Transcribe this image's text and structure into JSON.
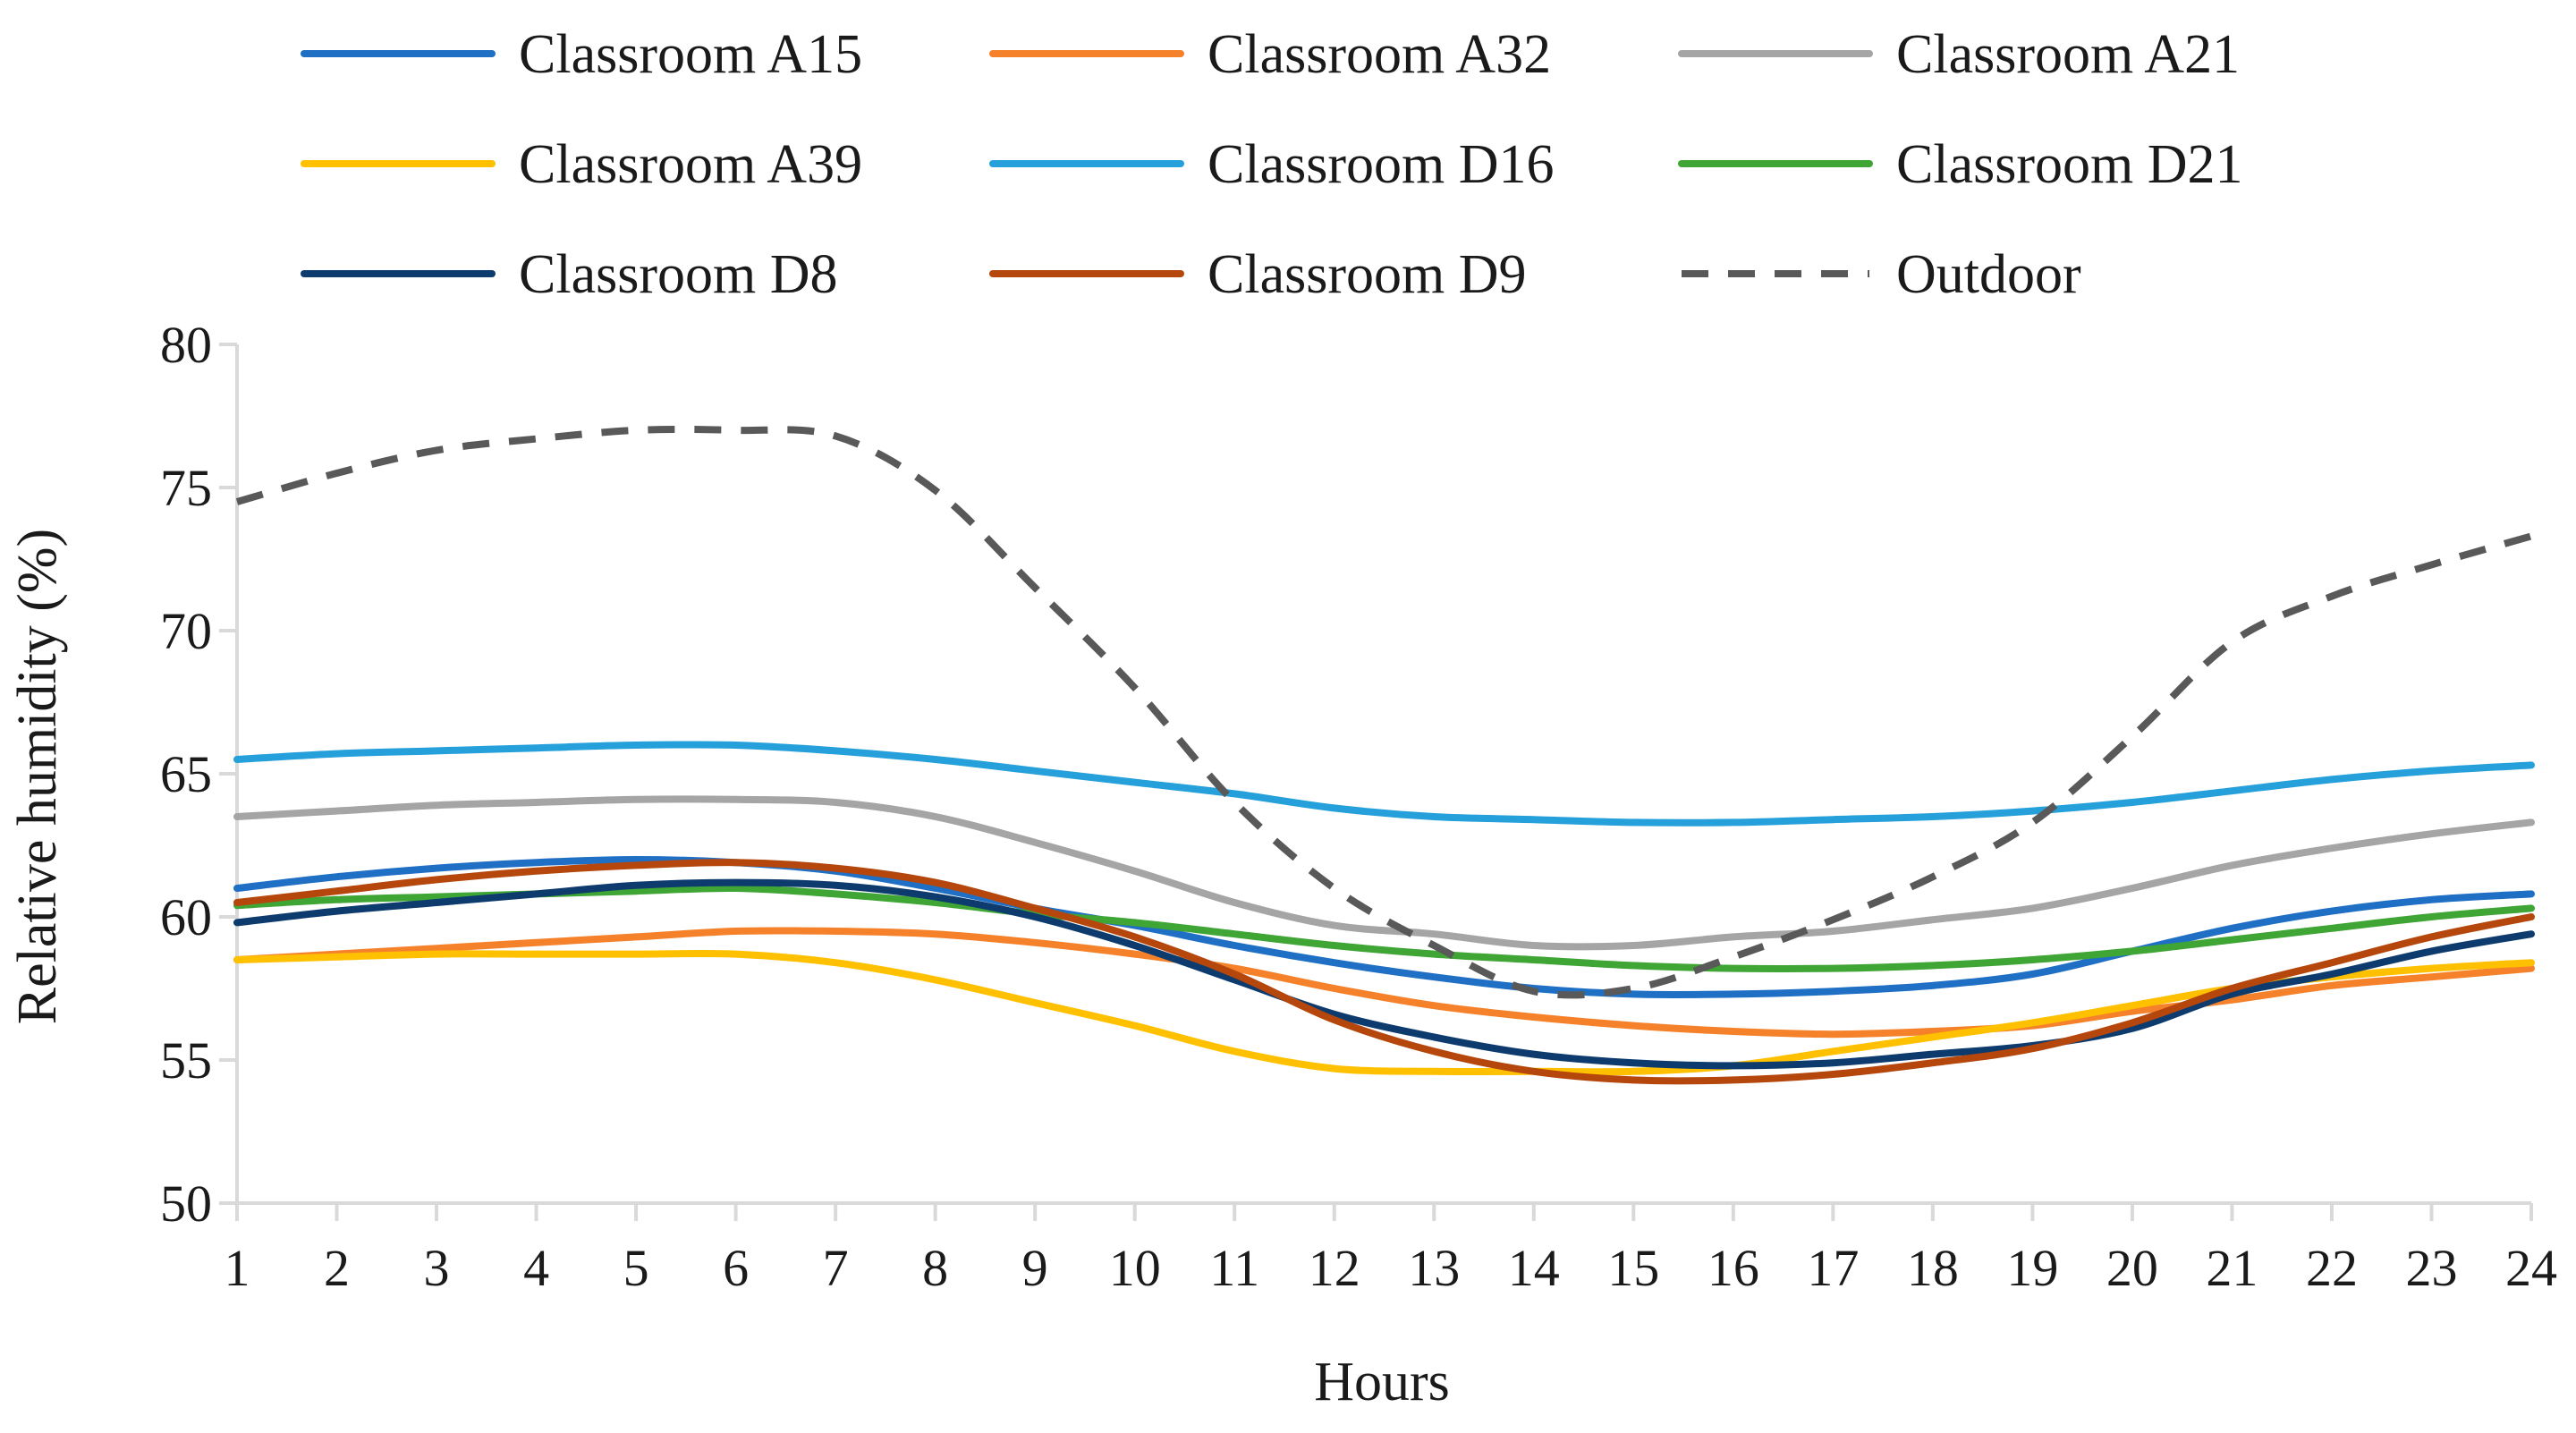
{
  "chart_data": {
    "type": "line",
    "xlabel": "Hours",
    "ylabel": "Relative humidity (%)",
    "ylim": [
      50,
      80
    ],
    "yticks": [
      50,
      55,
      60,
      65,
      70,
      75,
      80
    ],
    "grid": false,
    "legend_position": "top",
    "x": [
      1,
      2,
      3,
      4,
      5,
      6,
      7,
      8,
      9,
      10,
      11,
      12,
      13,
      14,
      15,
      16,
      17,
      18,
      19,
      20,
      21,
      22,
      23,
      24
    ],
    "series": [
      {
        "name": "Classroom A15",
        "color": "#1F6FC5",
        "dashed": false,
        "values": [
          61.0,
          61.4,
          61.7,
          61.9,
          62.0,
          61.9,
          61.6,
          61.0,
          60.3,
          59.7,
          59.0,
          58.4,
          57.9,
          57.5,
          57.3,
          57.3,
          57.4,
          57.6,
          58.0,
          58.8,
          59.6,
          60.2,
          60.6,
          60.8
        ]
      },
      {
        "name": "Classroom A32",
        "color": "#F5822B",
        "dashed": false,
        "values": [
          58.5,
          58.7,
          58.9,
          59.1,
          59.3,
          59.5,
          59.5,
          59.4,
          59.1,
          58.7,
          58.2,
          57.5,
          56.9,
          56.5,
          56.2,
          56.0,
          55.9,
          56.0,
          56.2,
          56.7,
          57.1,
          57.6,
          57.9,
          58.2
        ]
      },
      {
        "name": "Classroom A21",
        "color": "#A5A5A5",
        "dashed": false,
        "values": [
          63.5,
          63.7,
          63.9,
          64.0,
          64.1,
          64.1,
          64.0,
          63.5,
          62.6,
          61.6,
          60.5,
          59.7,
          59.4,
          59.0,
          59.0,
          59.3,
          59.5,
          59.9,
          60.3,
          61.0,
          61.8,
          62.4,
          62.9,
          63.3
        ]
      },
      {
        "name": "Classroom A39",
        "color": "#FFC000",
        "dashed": false,
        "values": [
          58.5,
          58.6,
          58.7,
          58.7,
          58.7,
          58.7,
          58.4,
          57.8,
          57.0,
          56.2,
          55.3,
          54.7,
          54.6,
          54.6,
          54.6,
          54.8,
          55.3,
          55.8,
          56.3,
          56.9,
          57.5,
          57.9,
          58.2,
          58.4
        ]
      },
      {
        "name": "Classroom D16",
        "color": "#25A0DA",
        "dashed": false,
        "values": [
          65.5,
          65.7,
          65.8,
          65.9,
          66.0,
          66.0,
          65.8,
          65.5,
          65.1,
          64.7,
          64.3,
          63.8,
          63.5,
          63.4,
          63.3,
          63.3,
          63.4,
          63.5,
          63.7,
          64.0,
          64.4,
          64.8,
          65.1,
          65.3
        ]
      },
      {
        "name": "Classroom D21",
        "color": "#3FA535",
        "dashed": false,
        "values": [
          60.4,
          60.6,
          60.7,
          60.8,
          60.9,
          61.0,
          60.8,
          60.5,
          60.1,
          59.8,
          59.4,
          59.0,
          58.7,
          58.5,
          58.3,
          58.2,
          58.2,
          58.3,
          58.5,
          58.8,
          59.2,
          59.6,
          60.0,
          60.3
        ]
      },
      {
        "name": "Classroom D8",
        "color": "#0D3B6E",
        "dashed": false,
        "values": [
          59.8,
          60.2,
          60.5,
          60.8,
          61.1,
          61.2,
          61.1,
          60.7,
          60.0,
          59.0,
          57.8,
          56.6,
          55.8,
          55.2,
          54.9,
          54.8,
          54.9,
          55.2,
          55.5,
          56.1,
          57.3,
          58.0,
          58.8,
          59.4
        ]
      },
      {
        "name": "Classroom D9",
        "color": "#B5470C",
        "dashed": false,
        "values": [
          60.5,
          60.9,
          61.3,
          61.6,
          61.8,
          61.9,
          61.7,
          61.2,
          60.3,
          59.3,
          58.0,
          56.4,
          55.3,
          54.6,
          54.3,
          54.3,
          54.5,
          54.9,
          55.4,
          56.3,
          57.5,
          58.4,
          59.3,
          60.0
        ]
      },
      {
        "name": "Outdoor",
        "color": "#595959",
        "dashed": true,
        "values": [
          74.5,
          75.5,
          76.3,
          76.7,
          77.0,
          77.0,
          76.8,
          74.9,
          71.5,
          68.0,
          64.0,
          61.0,
          59.0,
          57.4,
          57.5,
          58.6,
          59.9,
          61.4,
          63.3,
          66.3,
          69.6,
          71.2,
          72.3,
          73.3
        ]
      }
    ]
  }
}
